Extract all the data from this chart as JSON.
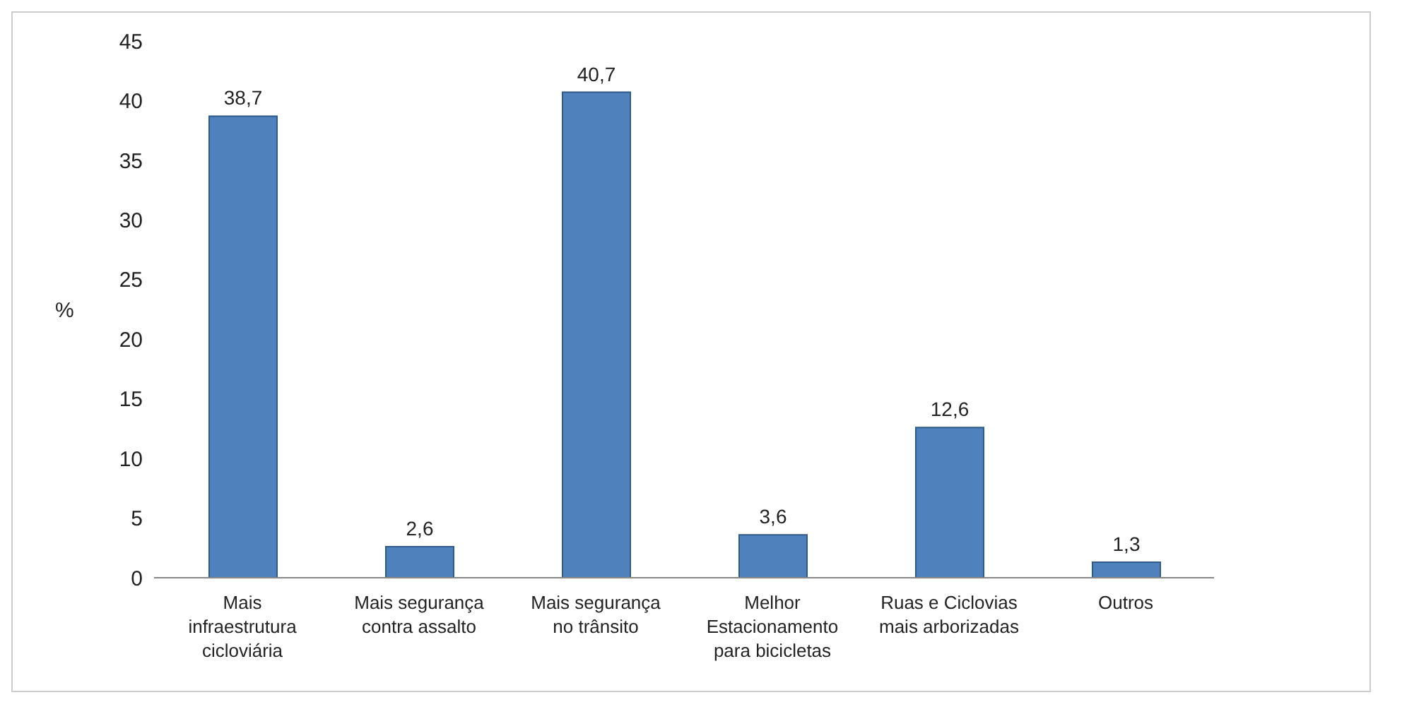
{
  "chart_data": {
    "type": "bar",
    "ylabel": "%",
    "categories": [
      "Mais\ninfraestrutura\ncicloviária",
      "Mais segurança\ncontra assalto",
      "Mais segurança\nno trânsito",
      "Melhor\nEstacionamento\npara bicicletas",
      "Ruas e Ciclovias\nmais arborizadas",
      "Outros"
    ],
    "values": [
      38.7,
      2.6,
      40.7,
      3.6,
      12.6,
      1.3
    ],
    "value_labels": [
      "38,7",
      "2,6",
      "40,7",
      "3,6",
      "12,6",
      "1,3"
    ],
    "color": "#4f81bd",
    "ylim": [
      0,
      45
    ],
    "yticks": [
      0,
      5,
      10,
      15,
      20,
      25,
      30,
      35,
      40,
      45
    ],
    "grid": false,
    "legend": false
  }
}
